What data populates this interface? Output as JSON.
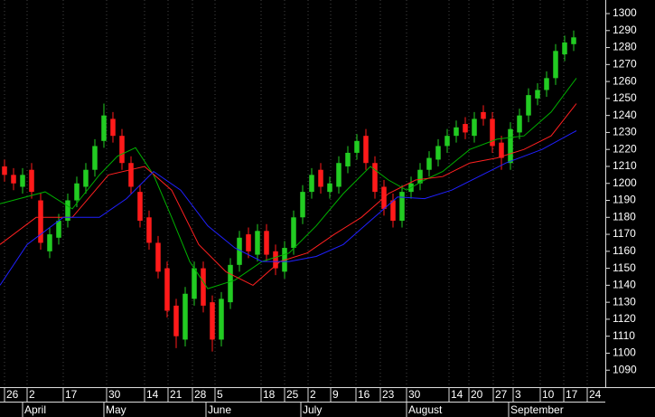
{
  "chart_data": {
    "type": "candlestick",
    "ylim": [
      1080,
      1308
    ],
    "yticks": [
      1090,
      1100,
      1110,
      1120,
      1130,
      1140,
      1150,
      1160,
      1170,
      1180,
      1190,
      1200,
      1210,
      1220,
      1230,
      1240,
      1250,
      1260,
      1270,
      1280,
      1290,
      1300
    ],
    "xlim": [
      -0.5,
      66.3
    ],
    "xticks": [
      {
        "value": 0,
        "label": "26"
      },
      {
        "value": 2.5,
        "label": "2"
      },
      {
        "value": 6.5,
        "label": "17"
      },
      {
        "value": 11.3,
        "label": "30"
      },
      {
        "value": 15.5,
        "label": "14"
      },
      {
        "value": 18.1,
        "label": "21"
      },
      {
        "value": 20.8,
        "label": "28"
      },
      {
        "value": 23.3,
        "label": "5"
      },
      {
        "value": 28.4,
        "label": "18"
      },
      {
        "value": 31,
        "label": "25"
      },
      {
        "value": 33.6,
        "label": "2"
      },
      {
        "value": 36.1,
        "label": "9"
      },
      {
        "value": 38.9,
        "label": "16"
      },
      {
        "value": 41.6,
        "label": "23"
      },
      {
        "value": 44.5,
        "label": "30"
      },
      {
        "value": 49.2,
        "label": "14"
      },
      {
        "value": 51.4,
        "label": "20"
      },
      {
        "value": 54.1,
        "label": "27"
      },
      {
        "value": 56.3,
        "label": "3"
      },
      {
        "value": 59.3,
        "label": "10"
      },
      {
        "value": 61.9,
        "label": "17"
      },
      {
        "value": 64.5,
        "label": "24"
      }
    ],
    "month_ticks": [
      {
        "value": 2,
        "label": "April"
      },
      {
        "value": 11,
        "label": "May"
      },
      {
        "value": 22.3,
        "label": "June"
      },
      {
        "value": 32.8,
        "label": "July"
      },
      {
        "value": 44.5,
        "label": "August"
      },
      {
        "value": 55.8,
        "label": "September"
      }
    ],
    "grid": true,
    "up_color": "#22cc22",
    "down_color": "#ff1a1a",
    "open": [
      1210,
      1205,
      1198,
      1208,
      1190,
      1160,
      1168,
      1178,
      1190,
      1198,
      1208,
      1225,
      1238,
      1228,
      1212,
      1195,
      1180,
      1165,
      1150,
      1128,
      1108,
      1132,
      1150,
      1130,
      1108,
      1130,
      1152,
      1170,
      1158,
      1172,
      1160,
      1148,
      1162,
      1180,
      1195,
      1208,
      1195,
      1198,
      1210,
      1218,
      1228,
      1212,
      1198,
      1190,
      1178,
      1195,
      1200,
      1208,
      1214,
      1222,
      1228,
      1235,
      1228,
      1242,
      1238,
      1224,
      1212,
      1230,
      1240,
      1250,
      1255,
      1262,
      1276,
      1282
    ],
    "high": [
      1214,
      1209,
      1209,
      1212,
      1194,
      1174,
      1182,
      1194,
      1204,
      1212,
      1226,
      1247,
      1242,
      1232,
      1216,
      1199,
      1184,
      1169,
      1154,
      1132,
      1139,
      1154,
      1154,
      1134,
      1136,
      1156,
      1172,
      1174,
      1176,
      1176,
      1164,
      1166,
      1184,
      1199,
      1209,
      1212,
      1204,
      1216,
      1222,
      1229,
      1232,
      1216,
      1202,
      1194,
      1199,
      1204,
      1212,
      1219,
      1226,
      1232,
      1237,
      1239,
      1242,
      1246,
      1242,
      1228,
      1236,
      1244,
      1256,
      1259,
      1266,
      1282,
      1287,
      1290
    ],
    "low": [
      1201,
      1196,
      1194,
      1191,
      1161,
      1156,
      1164,
      1174,
      1186,
      1194,
      1204,
      1221,
      1224,
      1208,
      1194,
      1174,
      1161,
      1144,
      1121,
      1103,
      1104,
      1128,
      1124,
      1101,
      1104,
      1126,
      1148,
      1156,
      1154,
      1154,
      1146,
      1144,
      1158,
      1176,
      1191,
      1194,
      1191,
      1194,
      1206,
      1214,
      1208,
      1191,
      1181,
      1174,
      1174,
      1191,
      1196,
      1204,
      1210,
      1218,
      1224,
      1226,
      1224,
      1234,
      1218,
      1208,
      1208,
      1226,
      1236,
      1246,
      1251,
      1258,
      1272,
      1278
    ],
    "close": [
      1205,
      1200,
      1205,
      1195,
      1165,
      1170,
      1178,
      1190,
      1200,
      1208,
      1222,
      1240,
      1228,
      1212,
      1198,
      1178,
      1165,
      1148,
      1125,
      1110,
      1135,
      1150,
      1128,
      1108,
      1132,
      1152,
      1168,
      1160,
      1172,
      1158,
      1150,
      1162,
      1180,
      1195,
      1205,
      1198,
      1200,
      1212,
      1218,
      1225,
      1212,
      1195,
      1185,
      1178,
      1195,
      1200,
      1208,
      1215,
      1222,
      1228,
      1233,
      1230,
      1238,
      1238,
      1222,
      1215,
      1232,
      1240,
      1252,
      1255,
      1262,
      1278,
      1283,
      1286
    ],
    "lines": [
      {
        "color": "#00b000",
        "x": [
          -0.5,
          4.5,
          7.5,
          10.5,
          12.5,
          14.5,
          16.5,
          18.5,
          20.5,
          22.5,
          25.5,
          28.5,
          31.5,
          34.5,
          37.5,
          40.5,
          42.5,
          44.5,
          46.5,
          48.5,
          51.5,
          54.5,
          57.5,
          60.5,
          63.3
        ],
        "values": [
          1188,
          1195,
          1185,
          1205,
          1216,
          1221,
          1205,
          1180,
          1154,
          1138,
          1143,
          1154,
          1159,
          1175,
          1194,
          1210,
          1202,
          1196,
          1202,
          1207,
          1220,
          1226,
          1228,
          1242,
          1262
        ]
      },
      {
        "color": "#ff2020",
        "x": [
          -0.5,
          3.5,
          7.5,
          11.5,
          15.5,
          18.5,
          21.5,
          24.5,
          27.5,
          30.5,
          33.5,
          36.5,
          39.5,
          42.5,
          45.5,
          48.5,
          51.5,
          54.5,
          57.5,
          60.5,
          63.3
        ],
        "values": [
          1164,
          1180,
          1180,
          1205,
          1210,
          1196,
          1164,
          1148,
          1140,
          1154,
          1159,
          1170,
          1180,
          1194,
          1202,
          1204,
          1212,
          1215,
          1220,
          1228,
          1247
        ]
      },
      {
        "color": "#2020ff",
        "x": [
          -0.5,
          2.5,
          6.5,
          10.5,
          13.5,
          16.5,
          19.5,
          22.5,
          25.5,
          28.5,
          31.5,
          34.5,
          37.5,
          40.5,
          43.5,
          46.5,
          49.5,
          52.5,
          55.5,
          59.5,
          63.3
        ],
        "values": [
          1140,
          1164,
          1180,
          1180,
          1191,
          1207,
          1196,
          1175,
          1162,
          1154,
          1154,
          1157,
          1164,
          1178,
          1192,
          1191,
          1196,
          1204,
          1212,
          1220,
          1231
        ]
      }
    ]
  }
}
